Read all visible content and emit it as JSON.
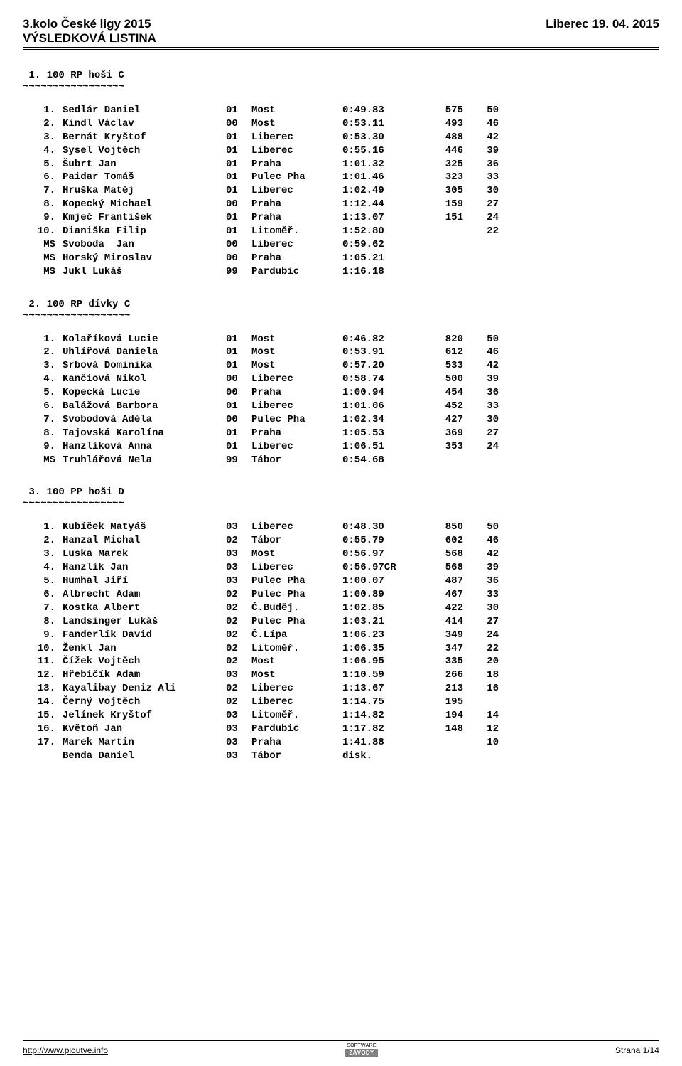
{
  "header": {
    "title_left": "3.kolo České ligy 2015",
    "title_right": "Liberec 19. 04. 2015",
    "subtitle": "VÝSLEDKOVÁ LISTINA"
  },
  "sections": [
    {
      "title": " 1. 100 RP hoši C",
      "sep": "~~~~~~~~~~~~~~~~~",
      "rows": [
        {
          "rank": "1.",
          "name": "Sedlár Daniel",
          "yr": "01",
          "club": "Most",
          "time": "0:49.83",
          "pts": "575",
          "bonus": "50"
        },
        {
          "rank": "2.",
          "name": "Kindl Václav",
          "yr": "00",
          "club": "Most",
          "time": "0:53.11",
          "pts": "493",
          "bonus": "46"
        },
        {
          "rank": "3.",
          "name": "Bernát Kryštof",
          "yr": "01",
          "club": "Liberec",
          "time": "0:53.30",
          "pts": "488",
          "bonus": "42"
        },
        {
          "rank": "4.",
          "name": "Sysel Vojtěch",
          "yr": "01",
          "club": "Liberec",
          "time": "0:55.16",
          "pts": "446",
          "bonus": "39"
        },
        {
          "rank": "5.",
          "name": "Šubrt Jan",
          "yr": "01",
          "club": "Praha",
          "time": "1:01.32",
          "pts": "325",
          "bonus": "36"
        },
        {
          "rank": "6.",
          "name": "Paidar Tomáš",
          "yr": "01",
          "club": "Pulec Pha",
          "time": "1:01.46",
          "pts": "323",
          "bonus": "33"
        },
        {
          "rank": "7.",
          "name": "Hruška Matěj",
          "yr": "01",
          "club": "Liberec",
          "time": "1:02.49",
          "pts": "305",
          "bonus": "30"
        },
        {
          "rank": "8.",
          "name": "Kopecký Michael",
          "yr": "00",
          "club": "Praha",
          "time": "1:12.44",
          "pts": "159",
          "bonus": "27"
        },
        {
          "rank": "9.",
          "name": "Kmječ František",
          "yr": "01",
          "club": "Praha",
          "time": "1:13.07",
          "pts": "151",
          "bonus": "24"
        },
        {
          "rank": "10.",
          "name": "Dianiška Filip",
          "yr": "01",
          "club": "Litoměř.",
          "time": "1:52.80",
          "pts": "",
          "bonus": "22"
        },
        {
          "rank": "MS",
          "name": "Svoboda  Jan",
          "yr": "00",
          "club": "Liberec",
          "time": "0:59.62",
          "pts": "",
          "bonus": ""
        },
        {
          "rank": "MS",
          "name": "Horský Miroslav",
          "yr": "00",
          "club": "Praha",
          "time": "1:05.21",
          "pts": "",
          "bonus": ""
        },
        {
          "rank": "MS",
          "name": "Jukl Lukáš",
          "yr": "99",
          "club": "Pardubic",
          "time": "1:16.18",
          "pts": "",
          "bonus": ""
        }
      ]
    },
    {
      "title": " 2. 100 RP dívky C",
      "sep": "~~~~~~~~~~~~~~~~~~",
      "rows": [
        {
          "rank": "1.",
          "name": "Kolaříková Lucie",
          "yr": "01",
          "club": "Most",
          "time": "0:46.82",
          "pts": "820",
          "bonus": "50"
        },
        {
          "rank": "2.",
          "name": "Uhlířová Daniela",
          "yr": "01",
          "club": "Most",
          "time": "0:53.91",
          "pts": "612",
          "bonus": "46"
        },
        {
          "rank": "3.",
          "name": "Srbová Dominika",
          "yr": "01",
          "club": "Most",
          "time": "0:57.20",
          "pts": "533",
          "bonus": "42"
        },
        {
          "rank": "4.",
          "name": "Kančiová Nikol",
          "yr": "00",
          "club": "Liberec",
          "time": "0:58.74",
          "pts": "500",
          "bonus": "39"
        },
        {
          "rank": "5.",
          "name": "Kopecká Lucie",
          "yr": "00",
          "club": "Praha",
          "time": "1:00.94",
          "pts": "454",
          "bonus": "36"
        },
        {
          "rank": "6.",
          "name": "Balážová Barbora",
          "yr": "01",
          "club": "Liberec",
          "time": "1:01.06",
          "pts": "452",
          "bonus": "33"
        },
        {
          "rank": "7.",
          "name": "Svobodová Adéla",
          "yr": "00",
          "club": "Pulec Pha",
          "time": "1:02.34",
          "pts": "427",
          "bonus": "30"
        },
        {
          "rank": "8.",
          "name": "Tajovská Karolína",
          "yr": "01",
          "club": "Praha",
          "time": "1:05.53",
          "pts": "369",
          "bonus": "27"
        },
        {
          "rank": "9.",
          "name": "Hanzlíková Anna",
          "yr": "01",
          "club": "Liberec",
          "time": "1:06.51",
          "pts": "353",
          "bonus": "24"
        },
        {
          "rank": "MS",
          "name": "Truhlářová Nela",
          "yr": "99",
          "club": "Tábor",
          "time": "0:54.68",
          "pts": "",
          "bonus": ""
        }
      ]
    },
    {
      "title": " 3. 100 PP hoši D",
      "sep": "~~~~~~~~~~~~~~~~~",
      "rows": [
        {
          "rank": "1.",
          "name": "Kubíček Matyáš",
          "yr": "03",
          "club": "Liberec",
          "time": "0:48.30",
          "pts": "850",
          "bonus": "50"
        },
        {
          "rank": "2.",
          "name": "Hanzal Michal",
          "yr": "02",
          "club": "Tábor",
          "time": "0:55.79",
          "pts": "602",
          "bonus": "46"
        },
        {
          "rank": "3.",
          "name": "Luska Marek",
          "yr": "03",
          "club": "Most",
          "time": "0:56.97",
          "pts": "568",
          "bonus": "42"
        },
        {
          "rank": "4.",
          "name": "Hanzlík Jan",
          "yr": "03",
          "club": "Liberec",
          "time": "0:56.97CR",
          "pts": "568",
          "bonus": "39"
        },
        {
          "rank": "5.",
          "name": "Humhal Jiří",
          "yr": "03",
          "club": "Pulec Pha",
          "time": "1:00.07",
          "pts": "487",
          "bonus": "36"
        },
        {
          "rank": "6.",
          "name": "Albrecht Adam",
          "yr": "02",
          "club": "Pulec Pha",
          "time": "1:00.89",
          "pts": "467",
          "bonus": "33"
        },
        {
          "rank": "7.",
          "name": "Kostka Albert",
          "yr": "02",
          "club": "Č.Buděj.",
          "time": "1:02.85",
          "pts": "422",
          "bonus": "30"
        },
        {
          "rank": "8.",
          "name": "Landsinger Lukáš",
          "yr": "02",
          "club": "Pulec Pha",
          "time": "1:03.21",
          "pts": "414",
          "bonus": "27"
        },
        {
          "rank": "9.",
          "name": "Fanderlík David",
          "yr": "02",
          "club": "Č.Lípa",
          "time": "1:06.23",
          "pts": "349",
          "bonus": "24"
        },
        {
          "rank": "10.",
          "name": "Ženkl Jan",
          "yr": "02",
          "club": "Litoměř.",
          "time": "1:06.35",
          "pts": "347",
          "bonus": "22"
        },
        {
          "rank": "11.",
          "name": "Čížek Vojtěch",
          "yr": "02",
          "club": "Most",
          "time": "1:06.95",
          "pts": "335",
          "bonus": "20"
        },
        {
          "rank": "12.",
          "name": "Hřebičík Adam",
          "yr": "03",
          "club": "Most",
          "time": "1:10.59",
          "pts": "266",
          "bonus": "18"
        },
        {
          "rank": "13.",
          "name": "Kayalibay Deniz Ali",
          "yr": "02",
          "club": "Liberec",
          "time": "1:13.67",
          "pts": "213",
          "bonus": "16"
        },
        {
          "rank": "14.",
          "name": "Černý Vojtěch",
          "yr": "02",
          "club": "Liberec",
          "time": "1:14.75",
          "pts": "195",
          "bonus": ""
        },
        {
          "rank": "15.",
          "name": "Jelínek Kryštof",
          "yr": "03",
          "club": "Litoměř.",
          "time": "1:14.82",
          "pts": "194",
          "bonus": "14"
        },
        {
          "rank": "16.",
          "name": "Květoň Jan",
          "yr": "03",
          "club": "Pardubic",
          "time": "1:17.82",
          "pts": "148",
          "bonus": "12"
        },
        {
          "rank": "17.",
          "name": "Marek Martin",
          "yr": "03",
          "club": "Praha",
          "time": "1:41.88",
          "pts": "",
          "bonus": "10"
        },
        {
          "rank": "",
          "name": "Benda Daniel",
          "yr": "03",
          "club": "Tábor",
          "time": "disk.",
          "pts": "",
          "bonus": ""
        }
      ]
    }
  ],
  "footer": {
    "url": "http://www.ploutve.info",
    "logo_top": "SOFTWARE",
    "logo_text": "ZÁVODY",
    "page": "Strana 1/14"
  }
}
